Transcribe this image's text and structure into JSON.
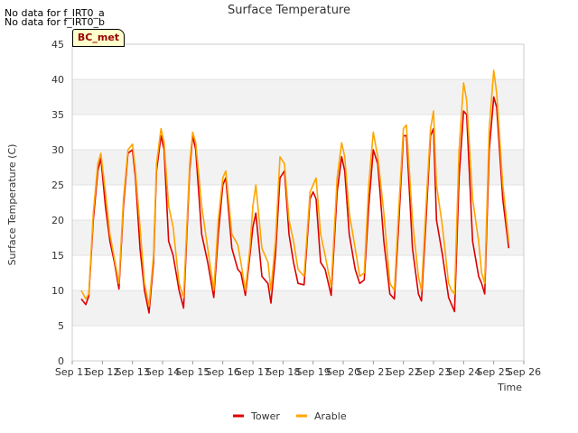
{
  "notes": {
    "nodata_a": "No data for f_IRT0_a",
    "nodata_b": "No data for f_IRT0_b",
    "badge": "BC_met"
  },
  "chart_data": {
    "type": "line",
    "title": "Surface Temperature",
    "xlabel": "Time",
    "ylabel": "Surface Temperature (C)",
    "ylim": [
      0,
      45
    ],
    "xlim": [
      11,
      26
    ],
    "x_ticks": [
      11,
      12,
      13,
      14,
      15,
      16,
      17,
      18,
      19,
      20,
      21,
      22,
      23,
      24,
      25,
      26
    ],
    "x_tick_labels": [
      "Sep 11",
      "Sep 12",
      "Sep 13",
      "Sep 14",
      "Sep 15",
      "Sep 16",
      "Sep 17",
      "Sep 18",
      "Sep 19",
      "Sep 20",
      "Sep 21",
      "Sep 22",
      "Sep 23",
      "Sep 24",
      "Sep 25",
      "Sep 26"
    ],
    "y_ticks": [
      0,
      5,
      10,
      15,
      20,
      25,
      30,
      35,
      40,
      45
    ],
    "grid": "horizontal bands",
    "legend_position": "bottom-center",
    "series": [
      {
        "name": "Tower",
        "color": "#dd0000",
        "x": [
          11.3,
          11.45,
          11.55,
          11.7,
          11.85,
          11.95,
          12.1,
          12.25,
          12.4,
          12.55,
          12.7,
          12.85,
          13.0,
          13.1,
          13.25,
          13.4,
          13.55,
          13.7,
          13.8,
          13.95,
          14.05,
          14.2,
          14.35,
          14.55,
          14.7,
          14.9,
          15.0,
          15.1,
          15.3,
          15.5,
          15.7,
          15.85,
          16.0,
          16.1,
          16.3,
          16.5,
          16.6,
          16.75,
          16.9,
          17.0,
          17.1,
          17.3,
          17.5,
          17.6,
          17.75,
          17.9,
          18.05,
          18.2,
          18.35,
          18.5,
          18.7,
          18.9,
          19.0,
          19.1,
          19.25,
          19.4,
          19.6,
          19.8,
          19.95,
          20.05,
          20.2,
          20.4,
          20.55,
          20.7,
          20.85,
          21.0,
          21.15,
          21.35,
          21.55,
          21.7,
          21.85,
          22.0,
          22.1,
          22.3,
          22.5,
          22.6,
          22.75,
          22.9,
          23.0,
          23.1,
          23.3,
          23.5,
          23.6,
          23.7,
          23.85,
          24.0,
          24.1,
          24.3,
          24.5,
          24.6,
          24.7,
          24.85,
          25.0,
          25.1,
          25.3,
          25.5
        ],
        "y": [
          8.8,
          8.0,
          9.2,
          20.0,
          27.0,
          28.8,
          22.0,
          17.0,
          14.0,
          10.2,
          22.0,
          29.5,
          30.0,
          26.0,
          16.0,
          10.0,
          6.8,
          14.0,
          27.0,
          32.0,
          30.0,
          17.0,
          15.0,
          10.0,
          7.5,
          27.0,
          32.0,
          30.0,
          18.0,
          14.0,
          9.0,
          18.0,
          25.0,
          26.0,
          16.0,
          13.0,
          12.5,
          9.3,
          15.0,
          19.0,
          21.0,
          12.0,
          11.0,
          8.2,
          15.0,
          26.0,
          27.0,
          18.0,
          14.0,
          11.0,
          10.8,
          23.0,
          24.0,
          23.0,
          14.0,
          13.0,
          9.3,
          24.0,
          29.0,
          27.0,
          18.0,
          13.0,
          11.0,
          11.5,
          22.0,
          30.0,
          28.0,
          17.0,
          9.5,
          8.8,
          20.0,
          32.0,
          32.0,
          16.0,
          9.5,
          8.5,
          20.0,
          32.0,
          33.0,
          20.0,
          15.0,
          9.0,
          8.0,
          7.0,
          26.0,
          35.5,
          35.0,
          17.0,
          12.0,
          11.0,
          9.5,
          30.0,
          37.5,
          36.0,
          23.0,
          16.0
        ]
      },
      {
        "name": "Arable",
        "color": "#ffa500",
        "x": [
          11.3,
          11.45,
          11.55,
          11.7,
          11.85,
          11.95,
          12.1,
          12.25,
          12.4,
          12.55,
          12.7,
          12.85,
          13.0,
          13.1,
          13.25,
          13.4,
          13.55,
          13.7,
          13.8,
          13.95,
          14.05,
          14.2,
          14.35,
          14.55,
          14.7,
          14.9,
          15.0,
          15.1,
          15.3,
          15.5,
          15.7,
          15.85,
          16.0,
          16.1,
          16.3,
          16.5,
          16.6,
          16.75,
          16.9,
          17.0,
          17.1,
          17.3,
          17.5,
          17.6,
          17.75,
          17.9,
          18.05,
          18.2,
          18.35,
          18.5,
          18.7,
          18.9,
          19.0,
          19.1,
          19.25,
          19.4,
          19.6,
          19.8,
          19.95,
          20.05,
          20.2,
          20.4,
          20.55,
          20.7,
          20.85,
          21.0,
          21.15,
          21.35,
          21.55,
          21.7,
          21.85,
          22.0,
          22.1,
          22.3,
          22.5,
          22.6,
          22.75,
          22.9,
          23.0,
          23.1,
          23.3,
          23.5,
          23.6,
          23.7,
          23.85,
          24.0,
          24.1,
          24.3,
          24.5,
          24.6,
          24.7,
          24.85,
          25.0,
          25.1,
          25.3,
          25.5
        ],
        "y": [
          10.0,
          8.8,
          9.5,
          21.0,
          28.0,
          29.5,
          24.0,
          18.0,
          14.5,
          11.0,
          23.0,
          30.0,
          30.8,
          27.0,
          19.0,
          11.0,
          7.8,
          15.0,
          28.0,
          33.0,
          31.0,
          22.0,
          19.0,
          11.0,
          9.0,
          28.0,
          32.5,
          31.0,
          22.0,
          16.0,
          10.0,
          20.0,
          26.0,
          27.0,
          18.0,
          16.5,
          14.0,
          10.0,
          16.0,
          22.0,
          25.0,
          16.0,
          14.0,
          10.0,
          17.0,
          29.0,
          28.0,
          20.0,
          17.0,
          13.0,
          12.0,
          24.0,
          25.0,
          26.0,
          18.0,
          15.0,
          10.5,
          26.0,
          31.0,
          29.0,
          21.0,
          16.0,
          12.0,
          12.5,
          25.0,
          32.5,
          29.0,
          21.0,
          11.0,
          10.0,
          22.0,
          33.0,
          33.5,
          20.0,
          12.0,
          10.0,
          22.0,
          33.0,
          35.5,
          25.0,
          19.0,
          11.0,
          10.0,
          9.5,
          30.0,
          39.5,
          37.0,
          23.0,
          17.0,
          12.5,
          11.0,
          33.0,
          41.3,
          38.0,
          25.0,
          17.0
        ]
      }
    ]
  }
}
